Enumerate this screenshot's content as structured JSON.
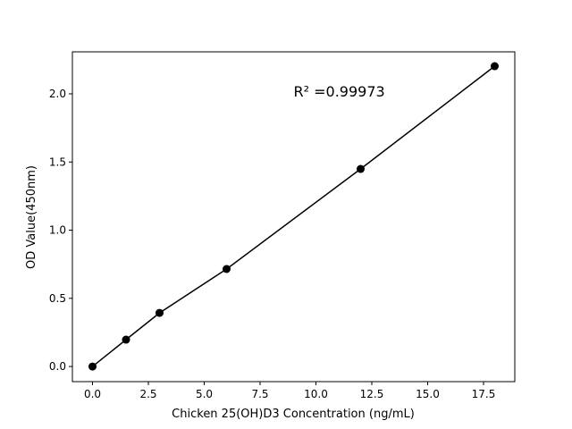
{
  "chart_data": {
    "type": "scatter",
    "title": "",
    "xlabel": "Chicken 25(OH)D3 Concentration (ng/mL)",
    "ylabel": "OD Value(450nm)",
    "xlim": [
      -0.9,
      18.9
    ],
    "ylim": [
      -0.111,
      2.308
    ],
    "xticks": [
      0.0,
      2.5,
      5.0,
      7.5,
      10.0,
      12.5,
      15.0,
      17.5
    ],
    "xtick_labels": [
      "0.0",
      "2.5",
      "5.0",
      "7.5",
      "10.0",
      "12.5",
      "15.0",
      "17.5"
    ],
    "yticks": [
      0.0,
      0.5,
      1.0,
      1.5,
      2.0
    ],
    "ytick_labels": [
      "0.0",
      "0.5",
      "1.0",
      "1.5",
      "2.0"
    ],
    "grid": false,
    "series": [
      {
        "x": [
          0,
          1.5,
          3,
          6,
          12,
          18
        ],
        "y": [
          0.0,
          0.197,
          0.393,
          0.715,
          1.449,
          2.203
        ],
        "color": "#000000",
        "marker": "circle",
        "line": true
      }
    ],
    "annotation": {
      "text": "R² =0.99973",
      "x": 9.0,
      "y": 1.98
    }
  }
}
